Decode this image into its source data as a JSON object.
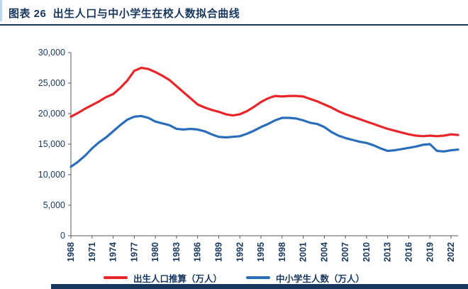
{
  "header": {
    "title": "图表 26  出生人口与中小学生在校人数拟合曲线"
  },
  "chart_data": {
    "type": "line",
    "title": "出生人口与中小学生在校人数拟合曲线",
    "xlabel": "",
    "ylabel": "",
    "ylim": [
      0,
      30000
    ],
    "ytick": 5000,
    "xtick": 3,
    "grid": false,
    "legend_position": "bottom",
    "x": [
      1968,
      1969,
      1970,
      1971,
      1972,
      1973,
      1974,
      1975,
      1976,
      1977,
      1978,
      1979,
      1980,
      1981,
      1982,
      1983,
      1984,
      1985,
      1986,
      1987,
      1988,
      1989,
      1990,
      1991,
      1992,
      1993,
      1994,
      1995,
      1996,
      1997,
      1998,
      1999,
      2000,
      2001,
      2002,
      2003,
      2004,
      2005,
      2006,
      2007,
      2008,
      2009,
      2010,
      2011,
      2012,
      2013,
      2014,
      2015,
      2016,
      2017,
      2018,
      2019,
      2020,
      2021,
      2022,
      2023
    ],
    "x_tick_labels": [
      "1968",
      "1971",
      "1974",
      "1977",
      "1980",
      "1983",
      "1986",
      "1989",
      "1992",
      "1995",
      "1998",
      "2001",
      "2004",
      "2007",
      "2010",
      "2013",
      "2016",
      "2019",
      "2022"
    ],
    "y_tick_labels": [
      "0",
      "5,000",
      "10,000",
      "15,000",
      "20,000",
      "25,000",
      "30,000"
    ],
    "series": [
      {
        "name": "出生人口推算（万人）",
        "color": "#E8262A",
        "values": [
          19500,
          20100,
          20800,
          21400,
          22000,
          22700,
          23200,
          24200,
          25400,
          27000,
          27500,
          27300,
          26800,
          26200,
          25500,
          24500,
          23500,
          22500,
          21500,
          21000,
          20600,
          20300,
          19900,
          19700,
          19900,
          20400,
          21100,
          21900,
          22500,
          22900,
          22800,
          22900,
          22900,
          22800,
          22400,
          22000,
          21500,
          21000,
          20400,
          19900,
          19500,
          19100,
          18700,
          18300,
          17900,
          17500,
          17200,
          16900,
          16600,
          16400,
          16300,
          16400,
          16300,
          16400,
          16600,
          16500
        ]
      },
      {
        "name": "中小学生人数（万人）",
        "color": "#2A6EBB",
        "values": [
          11300,
          12100,
          13100,
          14300,
          15300,
          16100,
          17100,
          18100,
          19000,
          19500,
          19600,
          19300,
          18700,
          18400,
          18100,
          17500,
          17400,
          17500,
          17400,
          17100,
          16600,
          16200,
          16100,
          16200,
          16300,
          16700,
          17200,
          17800,
          18300,
          18900,
          19300,
          19300,
          19200,
          18900,
          18500,
          18300,
          17800,
          17000,
          16400,
          16000,
          15700,
          15400,
          15200,
          14800,
          14300,
          13900,
          14000,
          14200,
          14400,
          14600,
          14900,
          15000,
          13900,
          13800,
          14000,
          14100
        ]
      }
    ]
  },
  "footer": {
    "bar_color": "#17375E"
  }
}
